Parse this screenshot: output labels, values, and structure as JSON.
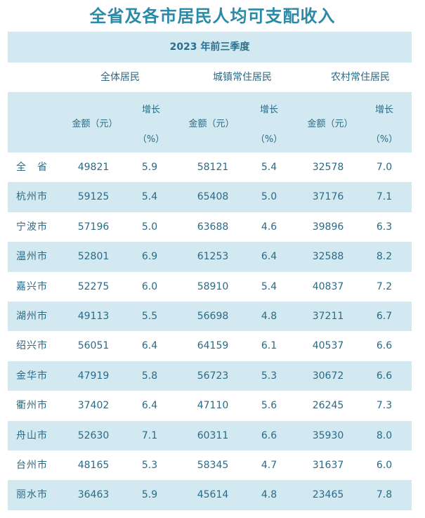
{
  "title": "全省及各市居民人均可支配收入",
  "period": "2023 年前三季度",
  "groups": [
    "全体居民",
    "城镇常住居民",
    "农村常住居民"
  ],
  "subheaders": {
    "amount": "金额（元）",
    "growth_top": "增长",
    "growth_bottom": "（%）"
  },
  "columns_per_group": [
    "金额（元）",
    "增长（%）"
  ],
  "rows": [
    {
      "region": "全　省",
      "all_amount": "49821",
      "all_growth": "5.9",
      "urban_amount": "58121",
      "urban_growth": "5.4",
      "rural_amount": "32578",
      "rural_growth": "7.0"
    },
    {
      "region": "杭州市",
      "all_amount": "59125",
      "all_growth": "5.4",
      "urban_amount": "65408",
      "urban_growth": "5.0",
      "rural_amount": "37176",
      "rural_growth": "7.1"
    },
    {
      "region": "宁波市",
      "all_amount": "57196",
      "all_growth": "5.0",
      "urban_amount": "63688",
      "urban_growth": "4.6",
      "rural_amount": "39896",
      "rural_growth": "6.3"
    },
    {
      "region": "温州市",
      "all_amount": "52801",
      "all_growth": "6.9",
      "urban_amount": "61253",
      "urban_growth": "6.4",
      "rural_amount": "32588",
      "rural_growth": "8.2"
    },
    {
      "region": "嘉兴市",
      "all_amount": "52275",
      "all_growth": "6.0",
      "urban_amount": "58910",
      "urban_growth": "5.4",
      "rural_amount": "40837",
      "rural_growth": "7.2"
    },
    {
      "region": "湖州市",
      "all_amount": "49113",
      "all_growth": "5.5",
      "urban_amount": "56698",
      "urban_growth": "4.8",
      "rural_amount": "37211",
      "rural_growth": "6.7"
    },
    {
      "region": "绍兴市",
      "all_amount": "56051",
      "all_growth": "6.4",
      "urban_amount": "64159",
      "urban_growth": "6.1",
      "rural_amount": "40537",
      "rural_growth": "6.6"
    },
    {
      "region": "金华市",
      "all_amount": "47919",
      "all_growth": "5.8",
      "urban_amount": "56723",
      "urban_growth": "5.3",
      "rural_amount": "30672",
      "rural_growth": "6.6"
    },
    {
      "region": "衢州市",
      "all_amount": "37402",
      "all_growth": "6.4",
      "urban_amount": "47110",
      "urban_growth": "5.6",
      "rural_amount": "26245",
      "rural_growth": "7.3"
    },
    {
      "region": "舟山市",
      "all_amount": "52630",
      "all_growth": "7.1",
      "urban_amount": "60311",
      "urban_growth": "6.6",
      "rural_amount": "35930",
      "rural_growth": "8.0"
    },
    {
      "region": "台州市",
      "all_amount": "48165",
      "all_growth": "5.3",
      "urban_amount": "58345",
      "urban_growth": "4.7",
      "rural_amount": "31637",
      "rural_growth": "6.0"
    },
    {
      "region": "丽水市",
      "all_amount": "36463",
      "all_growth": "5.9",
      "urban_amount": "45614",
      "urban_growth": "4.8",
      "rural_amount": "23465",
      "rural_growth": "7.8"
    }
  ],
  "colors": {
    "title": "#2a8aa8",
    "band": "#d3e9f1",
    "text": "#2b6a86"
  }
}
